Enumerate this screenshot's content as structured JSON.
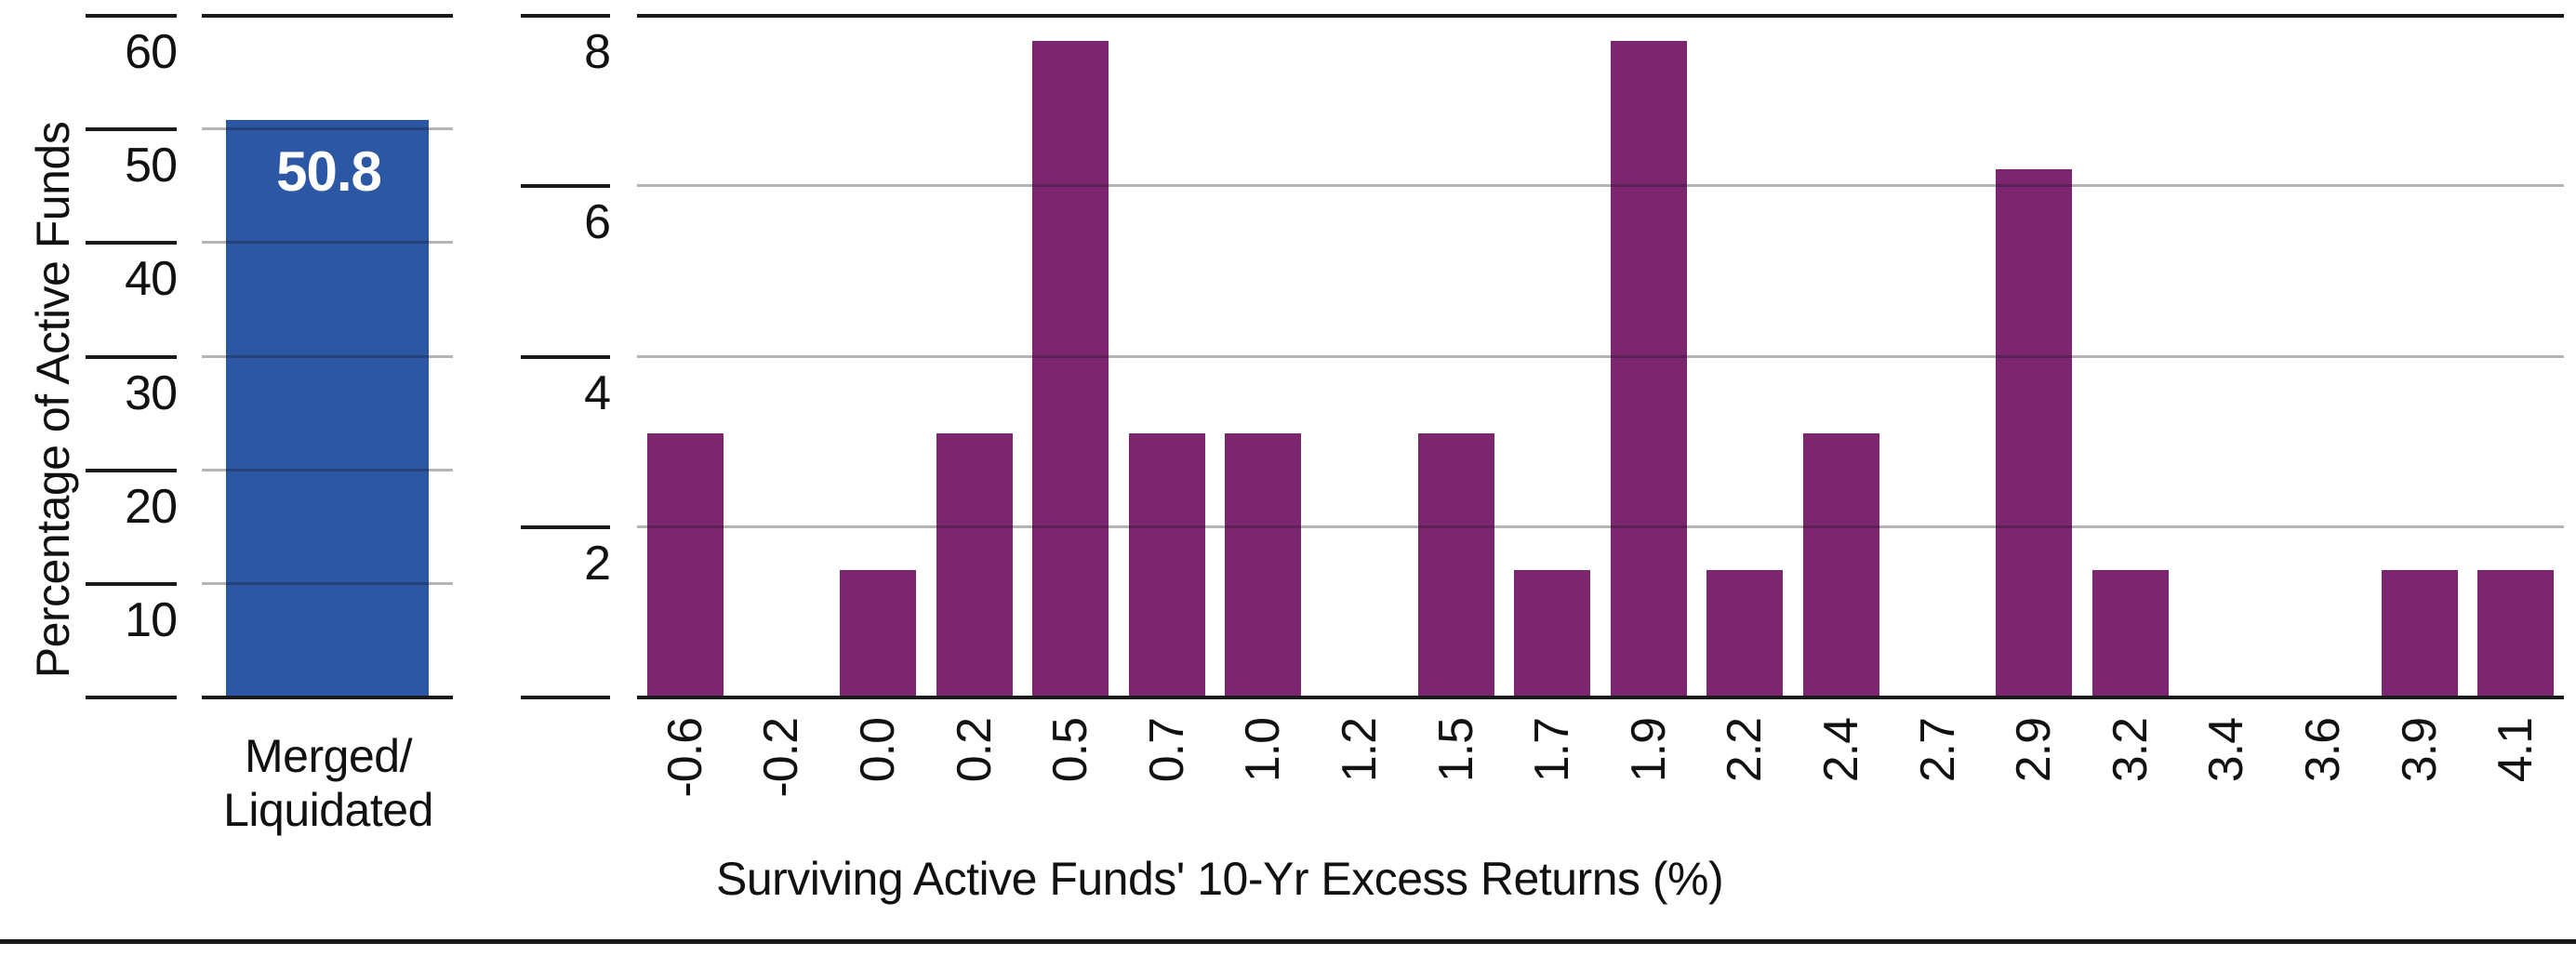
{
  "chart_data": [
    {
      "type": "bar",
      "panel": "left",
      "ylabel": "Percentage of Active Funds",
      "categories": [
        "Merged/Liquidated"
      ],
      "category_lines": [
        "Merged/",
        "Liquidated"
      ],
      "values": [
        50.8
      ],
      "bar_labels": [
        "50.8"
      ],
      "yticks": [
        10,
        20,
        30,
        40,
        50,
        60
      ],
      "ylim": [
        0,
        60
      ],
      "grid": "horizontal",
      "legend": "none",
      "bar_color": "#2b57a5",
      "bar_label_color": "#ffffff"
    },
    {
      "type": "bar",
      "panel": "right",
      "xlabel": "Surviving Active Funds' 10-Yr Excess Returns (%)",
      "categories": [
        "-0.6",
        "-0.2",
        "0.0",
        "0.2",
        "0.5",
        "0.7",
        "1.0",
        "1.2",
        "1.5",
        "1.7",
        "1.9",
        "2.2",
        "2.4",
        "2.7",
        "2.9",
        "3.2",
        "3.4",
        "3.6",
        "3.9",
        "4.1"
      ],
      "values": [
        3.1,
        0,
        1.5,
        3.1,
        7.7,
        3.1,
        3.1,
        0,
        3.1,
        1.5,
        7.7,
        1.5,
        3.1,
        0,
        6.2,
        1.5,
        0,
        0,
        1.5,
        1.5
      ],
      "yticks": [
        2,
        4,
        6,
        8
      ],
      "ylim": [
        0,
        8
      ],
      "grid": "horizontal",
      "legend": "none",
      "bar_color": "#7c2670"
    }
  ],
  "styles": {
    "axis_color": "#1a1a1a",
    "grid_color": "#b0b0b0",
    "text_color": "#111111",
    "footer_rule_color": "#1a1a1a"
  }
}
